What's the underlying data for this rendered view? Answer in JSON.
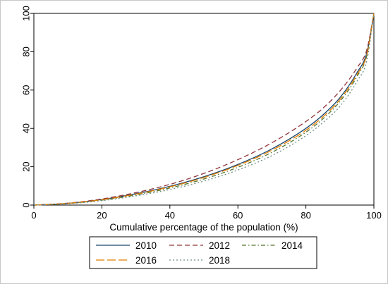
{
  "chart_data": {
    "type": "line",
    "title": "",
    "xlabel": "Cumulative percentage of the population (%)",
    "ylabel": "",
    "xlim": [
      0,
      100
    ],
    "ylim": [
      0,
      100
    ],
    "xticks": [
      0,
      20,
      40,
      60,
      80,
      100
    ],
    "yticks": [
      0,
      20,
      40,
      60,
      80,
      100
    ],
    "grid": false,
    "legend_position": "bottom",
    "x": [
      0,
      10,
      20,
      30,
      40,
      50,
      60,
      70,
      80,
      85,
      90,
      95,
      98,
      100
    ],
    "series": [
      {
        "name": "2010",
        "color": "#1a476f",
        "dash": "solid",
        "values": [
          0,
          0.9,
          2.9,
          5.9,
          9.8,
          14.8,
          21.2,
          29.3,
          40.0,
          47.0,
          56.0,
          69.0,
          80.0,
          100
        ]
      },
      {
        "name": "2012",
        "color": "#90353b",
        "dash": "dash",
        "values": [
          0,
          1.0,
          3.2,
          6.5,
          10.8,
          16.5,
          23.7,
          32.5,
          43.6,
          50.5,
          59.5,
          71.5,
          81.5,
          100
        ]
      },
      {
        "name": "2014",
        "color": "#55752f",
        "dash": "dashdot",
        "values": [
          0,
          0.8,
          2.6,
          5.3,
          8.9,
          13.6,
          19.7,
          27.5,
          38.0,
          45.0,
          54.0,
          67.0,
          78.5,
          100
        ]
      },
      {
        "name": "2016",
        "color": "#e37e00",
        "dash": "longdash",
        "values": [
          0,
          0.9,
          2.8,
          5.7,
          9.5,
          14.4,
          20.7,
          28.6,
          39.0,
          46.0,
          55.0,
          68.0,
          79.0,
          100
        ]
      },
      {
        "name": "2018",
        "color": "#6e8e84",
        "dash": "dot",
        "values": [
          0,
          0.7,
          2.3,
          4.8,
          8.1,
          12.5,
          18.3,
          25.8,
          36.2,
          43.0,
          51.5,
          64.5,
          76.0,
          100
        ]
      }
    ]
  }
}
